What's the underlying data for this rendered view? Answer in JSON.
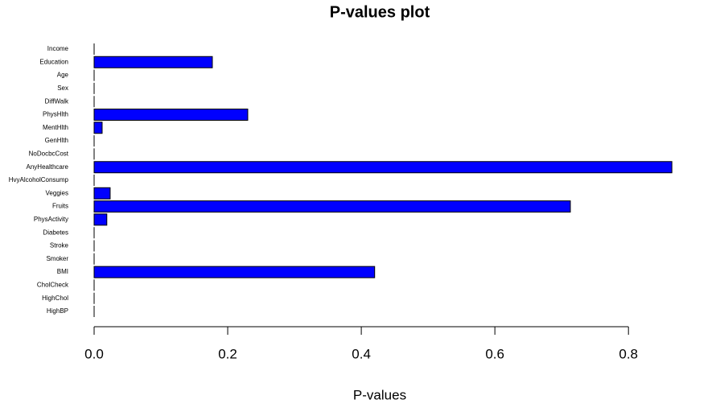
{
  "chart_data": {
    "type": "barh",
    "title": "P-values plot",
    "x_label": "P-values",
    "categories": [
      "HighBP",
      "HighChol",
      "CholCheck",
      "BMI",
      "Smoker",
      "Stroke",
      "Diabetes",
      "PhysActivity",
      "Fruits",
      "Veggies",
      "HvyAlcoholConsump",
      "AnyHealthcare",
      "NoDocbcCost",
      "GenHlth",
      "MentHlth",
      "PhysHlth",
      "DiffWalk",
      "Sex",
      "Age",
      "Education",
      "Income"
    ],
    "values": [
      0,
      0,
      0,
      0.42,
      0,
      0,
      0,
      0.019,
      0.713,
      0.024,
      0,
      0.865,
      0,
      0,
      0.012,
      0.23,
      0,
      0,
      0,
      0.177,
      0
    ],
    "color": "#0000ff",
    "xlim": [
      0,
      0.866
    ],
    "xticks": [
      {
        "value": 0,
        "label": "0.0"
      },
      0.2,
      0.4,
      0.6,
      0.8
    ]
  }
}
